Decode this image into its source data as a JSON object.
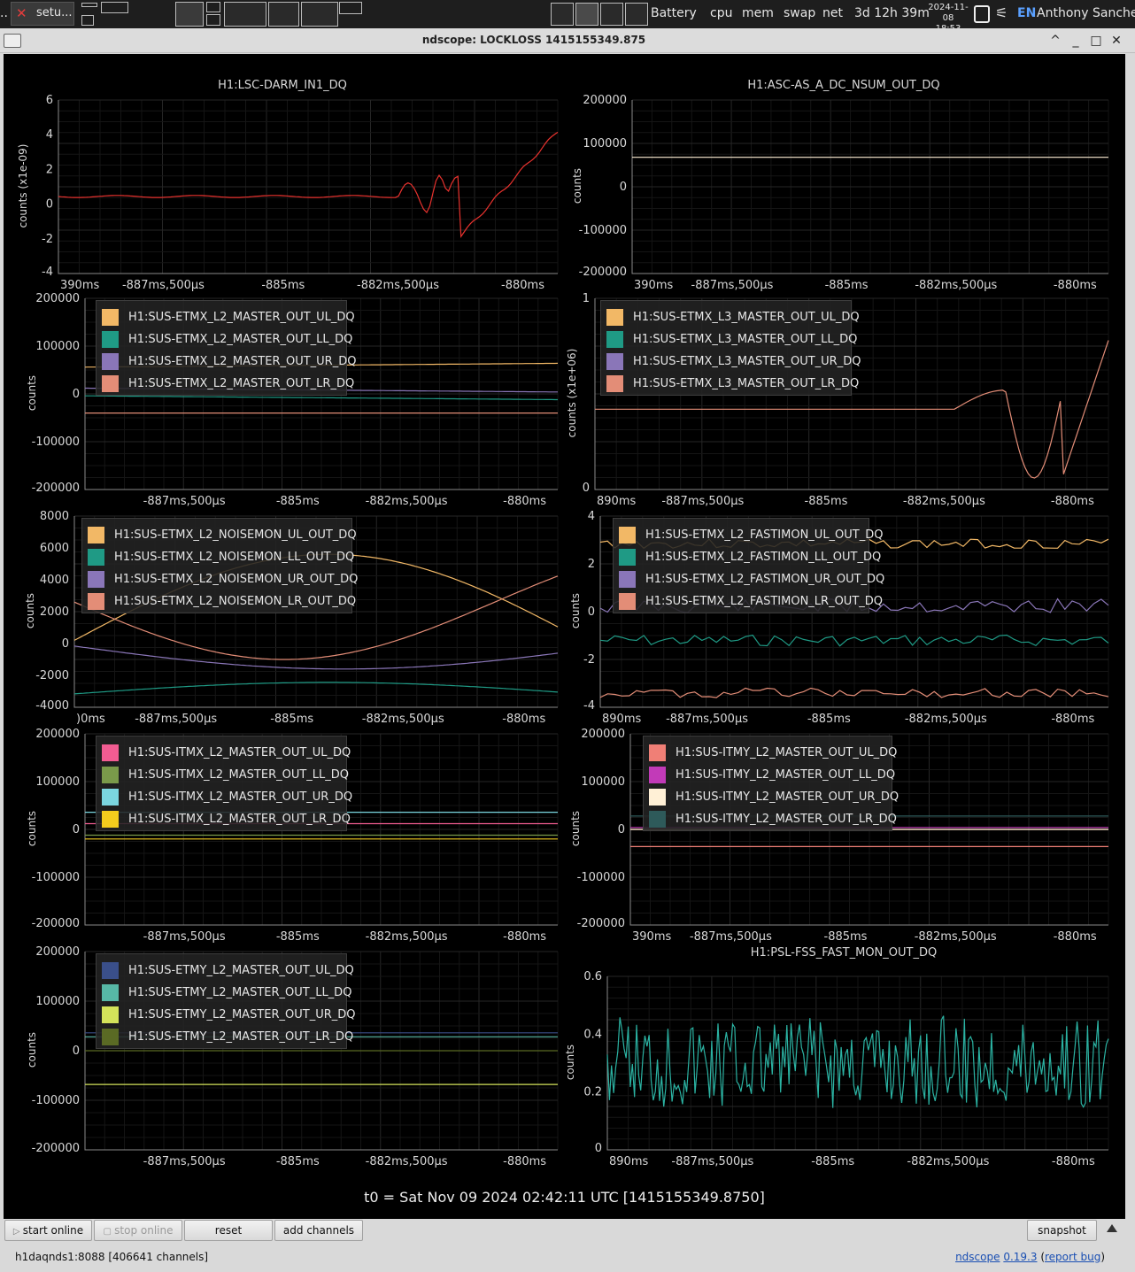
{
  "taskbar": {
    "app_label": "setu...",
    "indicators": [
      "Battery",
      "cpu",
      "mem",
      "swap",
      "net"
    ],
    "uptime": "3d 12h 39m",
    "date": "2024-11-08",
    "time": "18:53",
    "lang": "EN",
    "user": "Anthony Sanchez"
  },
  "window": {
    "title": "ndscope: LOCKLOSS 1415155349.875",
    "controls": [
      "^",
      "_",
      "□",
      "✕"
    ]
  },
  "xticks": [
    "-887ms,500µs",
    "-885ms",
    "-882ms,500µs",
    "-880ms"
  ],
  "xtick_first": "890ms",
  "colors": {
    "red": "#e8322e",
    "orange": "#f2b866",
    "teal": "#1f9a85",
    "purple": "#8a76b8",
    "salmon": "#e38d77",
    "pink": "#f25c92",
    "olive": "#7a9a4a",
    "cyan": "#7bd6e0",
    "yellow": "#f3cc1d",
    "salmon2": "#f07f76",
    "magenta": "#c23ab8",
    "cream": "#fff0d6",
    "slate": "#2e5a5a",
    "navy": "#3a4f8a",
    "teal2": "#57b8a6",
    "lime": "#d4e35a",
    "darkolive": "#5a6a24",
    "aqua": "#2bb3a3"
  },
  "plots": [
    {
      "id": "p1",
      "title": "H1:LSC-DARM_IN1_DQ",
      "ylabel": "counts (x1e-09)",
      "yticks": [
        "6",
        "4",
        "2",
        "0",
        "-2",
        "-4"
      ],
      "xfirst": "390ms",
      "legend": []
    },
    {
      "id": "p2",
      "title": "H1:ASC-AS_A_DC_NSUM_OUT_DQ",
      "ylabel": "counts",
      "yticks": [
        "200000",
        "100000",
        "0",
        "-100000",
        "-200000"
      ],
      "xfirst": "390ms",
      "legend": []
    },
    {
      "id": "p3",
      "title": "",
      "ylabel": "counts",
      "yticks": [
        "200000",
        "100000",
        "0",
        "-100000",
        "-200000"
      ],
      "xfirst": "",
      "legend": [
        {
          "label": "H1:SUS-ETMX_L2_MASTER_OUT_UL_DQ",
          "color": "#f2b866"
        },
        {
          "label": "H1:SUS-ETMX_L2_MASTER_OUT_LL_DQ",
          "color": "#1f9a85"
        },
        {
          "label": "H1:SUS-ETMX_L2_MASTER_OUT_UR_DQ",
          "color": "#8a76b8"
        },
        {
          "label": "H1:SUS-ETMX_L2_MASTER_OUT_LR_DQ",
          "color": "#e38d77"
        }
      ]
    },
    {
      "id": "p4",
      "title": "",
      "ylabel": "counts (x1e+06)",
      "yticks": [
        "1",
        "0"
      ],
      "xfirst": "890ms",
      "legend": [
        {
          "label": "H1:SUS-ETMX_L3_MASTER_OUT_UL_DQ",
          "color": "#f2b866"
        },
        {
          "label": "H1:SUS-ETMX_L3_MASTER_OUT_LL_DQ",
          "color": "#1f9a85"
        },
        {
          "label": "H1:SUS-ETMX_L3_MASTER_OUT_UR_DQ",
          "color": "#8a76b8"
        },
        {
          "label": "H1:SUS-ETMX_L3_MASTER_OUT_LR_DQ",
          "color": "#e38d77"
        }
      ]
    },
    {
      "id": "p5",
      "title": "",
      "ylabel": "counts",
      "yticks": [
        "8000",
        "6000",
        "4000",
        "2000",
        "0",
        "-2000",
        "-4000"
      ],
      "xfirst": ")0ms",
      "legend": [
        {
          "label": "H1:SUS-ETMX_L2_NOISEMON_UL_OUT_DQ",
          "color": "#f2b866"
        },
        {
          "label": "H1:SUS-ETMX_L2_NOISEMON_LL_OUT_DQ",
          "color": "#1f9a85"
        },
        {
          "label": "H1:SUS-ETMX_L2_NOISEMON_UR_OUT_DQ",
          "color": "#8a76b8"
        },
        {
          "label": "H1:SUS-ETMX_L2_NOISEMON_LR_OUT_DQ",
          "color": "#e38d77"
        }
      ]
    },
    {
      "id": "p6",
      "title": "",
      "ylabel": "counts",
      "yticks": [
        "4",
        "2",
        "0",
        "-2",
        "-4"
      ],
      "xfirst": "890ms",
      "legend": [
        {
          "label": "H1:SUS-ETMX_L2_FASTIMON_UL_OUT_DQ",
          "color": "#f2b866"
        },
        {
          "label": "H1:SUS-ETMX_L2_FASTIMON_LL_OUT_DQ",
          "color": "#1f9a85"
        },
        {
          "label": "H1:SUS-ETMX_L2_FASTIMON_UR_OUT_DQ",
          "color": "#8a76b8"
        },
        {
          "label": "H1:SUS-ETMX_L2_FASTIMON_LR_OUT_DQ",
          "color": "#e38d77"
        }
      ]
    },
    {
      "id": "p7",
      "title": "",
      "ylabel": "counts",
      "yticks": [
        "200000",
        "100000",
        "0",
        "-100000",
        "-200000"
      ],
      "xfirst": "",
      "legend": [
        {
          "label": "H1:SUS-ITMX_L2_MASTER_OUT_UL_DQ",
          "color": "#f25c92"
        },
        {
          "label": "H1:SUS-ITMX_L2_MASTER_OUT_LL_DQ",
          "color": "#7a9a4a"
        },
        {
          "label": "H1:SUS-ITMX_L2_MASTER_OUT_UR_DQ",
          "color": "#7bd6e0"
        },
        {
          "label": "H1:SUS-ITMX_L2_MASTER_OUT_LR_DQ",
          "color": "#f3cc1d"
        }
      ]
    },
    {
      "id": "p8",
      "title": "",
      "ylabel": "counts",
      "yticks": [
        "200000",
        "100000",
        "0",
        "-100000",
        "-200000"
      ],
      "xfirst": "390ms",
      "legend": [
        {
          "label": "H1:SUS-ITMY_L2_MASTER_OUT_UL_DQ",
          "color": "#f07f76"
        },
        {
          "label": "H1:SUS-ITMY_L2_MASTER_OUT_LL_DQ",
          "color": "#c23ab8"
        },
        {
          "label": "H1:SUS-ITMY_L2_MASTER_OUT_UR_DQ",
          "color": "#fff0d6"
        },
        {
          "label": "H1:SUS-ITMY_L2_MASTER_OUT_LR_DQ",
          "color": "#2e5a5a"
        }
      ]
    },
    {
      "id": "p9",
      "title": "",
      "ylabel": "counts",
      "yticks": [
        "200000",
        "100000",
        "0",
        "-100000",
        "-200000"
      ],
      "xfirst": "",
      "legend": [
        {
          "label": "H1:SUS-ETMY_L2_MASTER_OUT_UL_DQ",
          "color": "#3a4f8a"
        },
        {
          "label": "H1:SUS-ETMY_L2_MASTER_OUT_LL_DQ",
          "color": "#57b8a6"
        },
        {
          "label": "H1:SUS-ETMY_L2_MASTER_OUT_UR_DQ",
          "color": "#d4e35a"
        },
        {
          "label": "H1:SUS-ETMY_L2_MASTER_OUT_LR_DQ",
          "color": "#5a6a24"
        }
      ]
    },
    {
      "id": "p10",
      "title": "H1:PSL-FSS_FAST_MON_OUT_DQ",
      "ylabel": "counts",
      "yticks": [
        "0.6",
        "0.4",
        "0.2",
        "0"
      ],
      "xfirst": "890ms",
      "legend": []
    }
  ],
  "t0": "t0 = Sat Nov 09 2024 02:42:11 UTC [1415155349.8750]",
  "buttons": {
    "start_online": "start online",
    "stop_online": "stop online",
    "reset": "reset",
    "add_channels": "add channels",
    "snapshot": "snapshot"
  },
  "status": "h1daqnds1:8088  [406641 channels]",
  "version": {
    "app": "ndscope",
    "number": "0.19.3",
    "report": "report bug"
  }
}
